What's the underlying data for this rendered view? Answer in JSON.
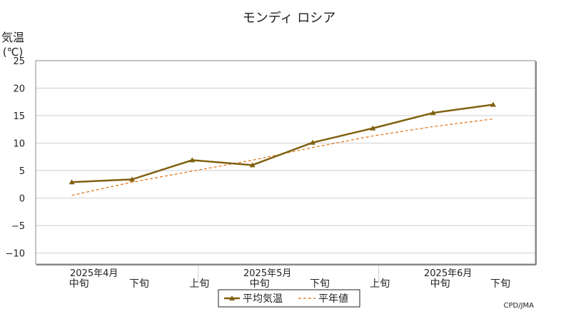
{
  "chart_data": {
    "type": "line",
    "title": "モンディ ロシア",
    "ylabel_line1": "気温",
    "ylabel_line2": "(℃)",
    "ylim": [
      -12,
      25
    ],
    "yticks": [
      "25",
      "20",
      "15",
      "10",
      "5",
      "0",
      "−5",
      "−10"
    ],
    "ytick_values": [
      25,
      20,
      15,
      10,
      5,
      0,
      -5,
      -10
    ],
    "grid": true,
    "categories": [
      "中旬",
      "下旬",
      "上旬",
      "中旬",
      "下旬",
      "上旬",
      "中旬",
      "下旬"
    ],
    "month_labels": [
      {
        "label": "2025年4月",
        "index": 0
      },
      {
        "label": "2025年5月",
        "index": 3
      },
      {
        "label": "2025年6月",
        "index": 6
      }
    ],
    "series": [
      {
        "name": "平均気温",
        "values": [
          2.9,
          3.4,
          6.9,
          6.0,
          10.1,
          12.7,
          15.5,
          17.0
        ],
        "color": "#806010",
        "style": "solid",
        "marker": "triangle"
      },
      {
        "name": "平年値",
        "values": [
          0.5,
          2.9,
          4.9,
          6.9,
          9.2,
          11.3,
          13.0,
          14.4
        ],
        "color": "#e07010",
        "style": "dashed"
      }
    ],
    "legend_position": "bottom-center",
    "credit": "CPD/JMA"
  }
}
